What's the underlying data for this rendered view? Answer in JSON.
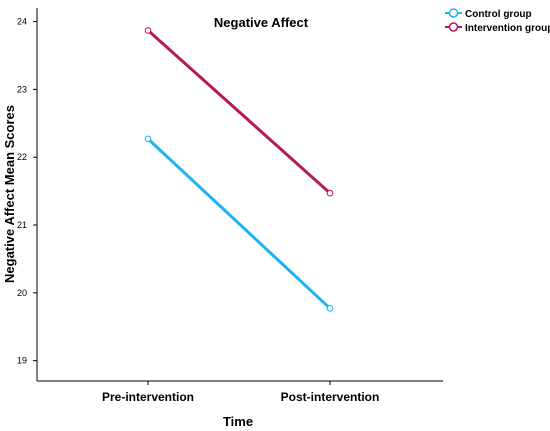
{
  "chart_data": {
    "type": "line",
    "title": "Negative Affect",
    "xlabel": "Time",
    "ylabel": "Negative Affect Mean Scores",
    "categories": [
      "Pre-intervention",
      "Post-intervention"
    ],
    "y_ticks": [
      19,
      20,
      21,
      22,
      23,
      24
    ],
    "ylim": [
      18.7,
      24.2
    ],
    "grid": false,
    "legend_position": "top-right",
    "series": [
      {
        "name": "Control group",
        "values": [
          22.27,
          19.77
        ],
        "color": "#1cb3f0"
      },
      {
        "name": "Intervention group",
        "values": [
          23.87,
          21.47
        ],
        "color": "#b8195a"
      }
    ]
  }
}
